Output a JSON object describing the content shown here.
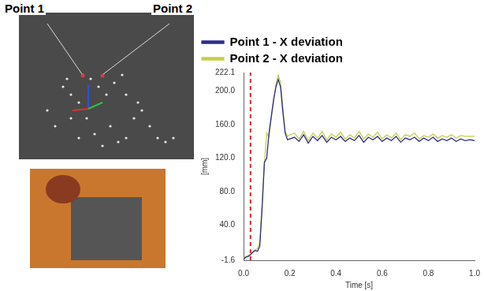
{
  "image_labels": [
    "Point 1",
    "Point 2"
  ],
  "chart_data": {
    "type": "line",
    "x_label": "Time [s]",
    "y_label": "[mm]",
    "x": [
      0,
      0.01,
      0.02,
      0.03,
      0.04,
      0.05,
      0.06,
      0.07,
      0.08,
      0.09,
      0.1,
      0.11,
      0.12,
      0.13,
      0.14,
      0.15,
      0.16,
      0.17,
      0.18,
      0.19,
      0.2,
      0.22,
      0.24,
      0.26,
      0.28,
      0.3,
      0.32,
      0.34,
      0.36,
      0.38,
      0.4,
      0.42,
      0.44,
      0.46,
      0.48,
      0.5,
      0.52,
      0.54,
      0.56,
      0.58,
      0.6,
      0.62,
      0.64,
      0.66,
      0.68,
      0.7,
      0.72,
      0.74,
      0.76,
      0.78,
      0.8,
      0.82,
      0.84,
      0.86,
      0.88,
      0.9,
      0.92,
      0.94,
      0.96,
      0.98,
      1.0
    ],
    "series": [
      {
        "name": "Point 1 - X deviation",
        "color": "#2e2e8c",
        "values": [
          0,
          2,
          3,
          5,
          8,
          10,
          9,
          15,
          60,
          115,
          120,
          150,
          170,
          190,
          205,
          214,
          205,
          175,
          150,
          142,
          143,
          145,
          140,
          148,
          138,
          146,
          141,
          147,
          139,
          145,
          142,
          146,
          140,
          144,
          141,
          147,
          139,
          145,
          142,
          146,
          140,
          144,
          141,
          146,
          139,
          144,
          142,
          145,
          140,
          144,
          141,
          145,
          140,
          143,
          141,
          144,
          140,
          143,
          141,
          142,
          141
        ]
      },
      {
        "name": "Point 2 - X deviation",
        "color": "#c3cf45",
        "values": [
          1,
          3,
          4,
          6,
          9,
          11,
          12,
          20,
          65,
          112,
          150,
          145,
          168,
          188,
          208,
          219,
          210,
          180,
          152,
          146,
          148,
          150,
          143,
          152,
          141,
          150,
          144,
          152,
          142,
          149,
          145,
          151,
          143,
          148,
          144,
          152,
          143,
          149,
          145,
          151,
          143,
          148,
          144,
          150,
          142,
          148,
          146,
          150,
          143,
          147,
          145,
          149,
          144,
          147,
          145,
          148,
          144,
          147,
          146,
          146,
          146
        ]
      }
    ],
    "vline": {
      "x": 0.03,
      "color": "#d62728",
      "line_style": "dashed"
    },
    "xlim": [
      0,
      1
    ],
    "xticks": [
      {
        "value": 0,
        "label": "0.0"
      },
      0.2,
      0.4,
      0.6,
      0.8,
      {
        "value": 1,
        "label": "1.0"
      }
    ],
    "ylim": [
      -1.6,
      222.1
    ],
    "yticks": [
      -1.6,
      {
        "value": 40,
        "label": "40.0"
      },
      {
        "value": 80,
        "label": "80.0"
      },
      {
        "value": 120,
        "label": "120.0"
      },
      {
        "value": 160,
        "label": "160.0"
      },
      {
        "value": 200,
        "label": "200.0"
      },
      222.1
    ],
    "grid": false,
    "legend": "top"
  }
}
